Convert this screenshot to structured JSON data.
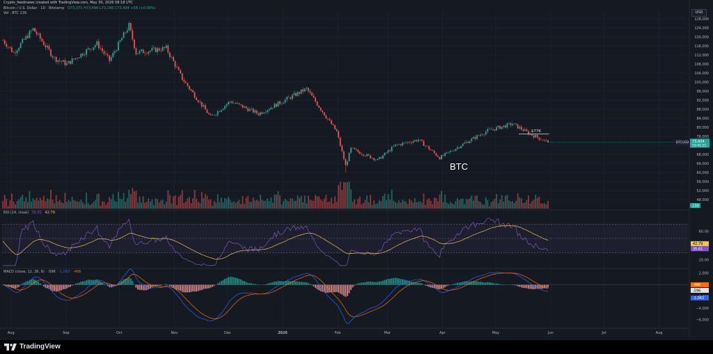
{
  "header": {
    "attribution": "Crypto_feedinews created with TradingView.com, May 30, 2026 08:18 UTC",
    "symbol": "Bitcoin / U.S. Dollar · 1D · Bitstamp",
    "ohlc": "O73,371 H73,496 L73,166 C73,434 +58 (+0.08%)",
    "volume": "Vol · BTC 139",
    "currency": "USD"
  },
  "panes": {
    "rsi_label": "RSI (14, close)",
    "rsi_value": "35.61",
    "rsi_ma": "42.79",
    "macd_label": "MACD (close, 12, 26, 9)",
    "macd_values": [
      "-596",
      "-1,063",
      "-466"
    ]
  },
  "annotations": {
    "big_label": "BTC",
    "level_label": "$77K",
    "price_tag_symbol": "BTCUSD",
    "price_tag_value": "73,434",
    "price_tag_time": "15:41:21",
    "volume_tag": "139"
  },
  "footer": {
    "brand": "TradingView"
  },
  "colors": {
    "background": "#151a22",
    "up": "#26a69a",
    "down": "#ef5350",
    "rsi_line": "#7e57c2",
    "rsi_ma": "#f5c451",
    "macd_line": "#2962ff",
    "signal_line": "#ff6d00"
  },
  "chart_data": {
    "type": "candlestick",
    "title": "Bitcoin / U.S. Dollar · 1D · Bitstamp",
    "x_ticks": [
      "Aug",
      "Sep",
      "Oct",
      "Nov",
      "Dec",
      "2026",
      "Feb",
      "Mar",
      "Apr",
      "May",
      "Jun",
      "Jul",
      "Aug"
    ],
    "y_ticks": [
      48000,
      52000,
      56000,
      60000,
      64000,
      68000,
      72000,
      76000,
      80000,
      84000,
      88000,
      92000,
      96000,
      100000,
      104000,
      108000,
      112000,
      116000,
      120000,
      124000,
      128000
    ],
    "ylim": [
      44000,
      132000
    ],
    "close_path": [
      {
        "x": "2025-07-27",
        "y": 118500
      },
      {
        "x": "2025-08-02",
        "y": 113000
      },
      {
        "x": "2025-08-13",
        "y": 123500
      },
      {
        "x": "2025-08-25",
        "y": 110500
      },
      {
        "x": "2025-09-01",
        "y": 108000
      },
      {
        "x": "2025-09-18",
        "y": 117000
      },
      {
        "x": "2025-09-25",
        "y": 109500
      },
      {
        "x": "2025-10-06",
        "y": 125000
      },
      {
        "x": "2025-10-10",
        "y": 113000
      },
      {
        "x": "2025-10-27",
        "y": 115000
      },
      {
        "x": "2025-11-05",
        "y": 101500
      },
      {
        "x": "2025-11-21",
        "y": 84500
      },
      {
        "x": "2025-12-02",
        "y": 91500
      },
      {
        "x": "2025-12-18",
        "y": 86000
      },
      {
        "x": "2026-01-14",
        "y": 97000
      },
      {
        "x": "2026-01-31",
        "y": 78000
      },
      {
        "x": "2026-02-05",
        "y": 63000
      },
      {
        "x": "2026-02-08",
        "y": 70500
      },
      {
        "x": "2026-02-23",
        "y": 65500
      },
      {
        "x": "2026-03-05",
        "y": 72000
      },
      {
        "x": "2026-03-18",
        "y": 74500
      },
      {
        "x": "2026-03-30",
        "y": 66500
      },
      {
        "x": "2026-04-12",
        "y": 72500
      },
      {
        "x": "2026-04-26",
        "y": 78500
      },
      {
        "x": "2026-05-10",
        "y": 81500
      },
      {
        "x": "2026-05-20",
        "y": 77000
      },
      {
        "x": "2026-05-30",
        "y": 73434
      }
    ],
    "last_price": 73434,
    "level": 77000,
    "rsi": {
      "overbought": 70,
      "oversold": 30,
      "value": 35.61,
      "ma": 42.79,
      "ticks": [
        20,
        40,
        60
      ]
    },
    "macd": {
      "macd": -596,
      "signal": -466,
      "histogram": -1063,
      "ticks": [
        -6000,
        -4000,
        -2000,
        0,
        2000
      ]
    },
    "volume_last": 139
  }
}
